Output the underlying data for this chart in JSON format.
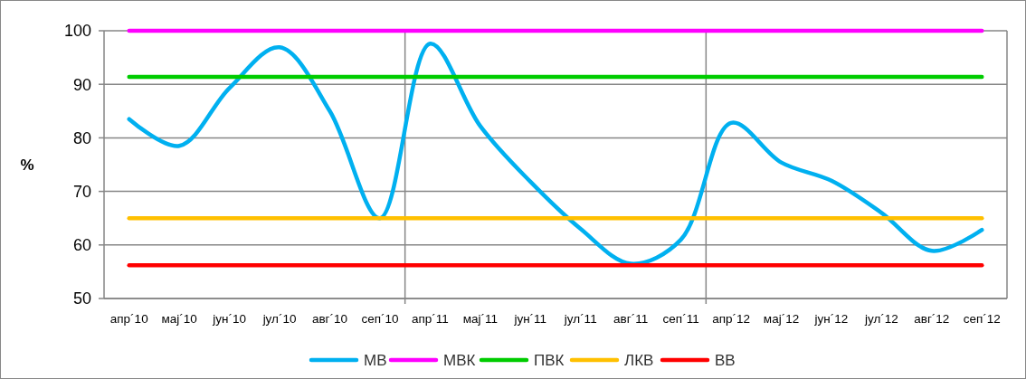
{
  "chart_data": {
    "type": "line",
    "ylabel": "%",
    "categories": [
      "апр´10",
      "мај´10",
      "јун´10",
      "јул´10",
      "авг´10",
      "сеп´10",
      "апр´11",
      "мај´11",
      "јун´11",
      "јул´11",
      "авг´11",
      "сеп´11",
      "апр´12",
      "мај´12",
      "јун´12",
      "јул´12",
      "авг´12",
      "сеп´12"
    ],
    "series": [
      {
        "name": "МВ",
        "color": "#00b0f0",
        "values": [
          83.5,
          78.5,
          89.3,
          96.9,
          85,
          65,
          97.6,
          82.2,
          71.8,
          63,
          56.5,
          61,
          82.8,
          75.4,
          72,
          66,
          58.9,
          62.8
        ]
      },
      {
        "name": "МВК",
        "color": "#ff00ff",
        "values": [
          100,
          100,
          100,
          100,
          100,
          100,
          100,
          100,
          100,
          100,
          100,
          100,
          100,
          100,
          100,
          100,
          100,
          100
        ]
      },
      {
        "name": "ПВК",
        "color": "#00cc00",
        "values": [
          91.4,
          91.4,
          91.4,
          91.4,
          91.4,
          91.4,
          91.4,
          91.4,
          91.4,
          91.4,
          91.4,
          91.4,
          91.4,
          91.4,
          91.4,
          91.4,
          91.4,
          91.4
        ]
      },
      {
        "name": "ЛКВ",
        "color": "#ffc000",
        "values": [
          65,
          65,
          65,
          65,
          65,
          65,
          65,
          65,
          65,
          65,
          65,
          65,
          65,
          65,
          65,
          65,
          65,
          65
        ]
      },
      {
        "name": "ВВ",
        "color": "#ff0000",
        "values": [
          56.2,
          56.2,
          56.2,
          56.2,
          56.2,
          56.2,
          56.2,
          56.2,
          56.2,
          56.2,
          56.2,
          56.2,
          56.2,
          56.2,
          56.2,
          56.2,
          56.2,
          56.2
        ]
      }
    ],
    "ylim": [
      50,
      100
    ],
    "yticks": [
      50,
      60,
      70,
      80,
      90,
      100
    ],
    "grid": true,
    "legend": "bottom",
    "marker": "none",
    "line_style": "solid"
  }
}
